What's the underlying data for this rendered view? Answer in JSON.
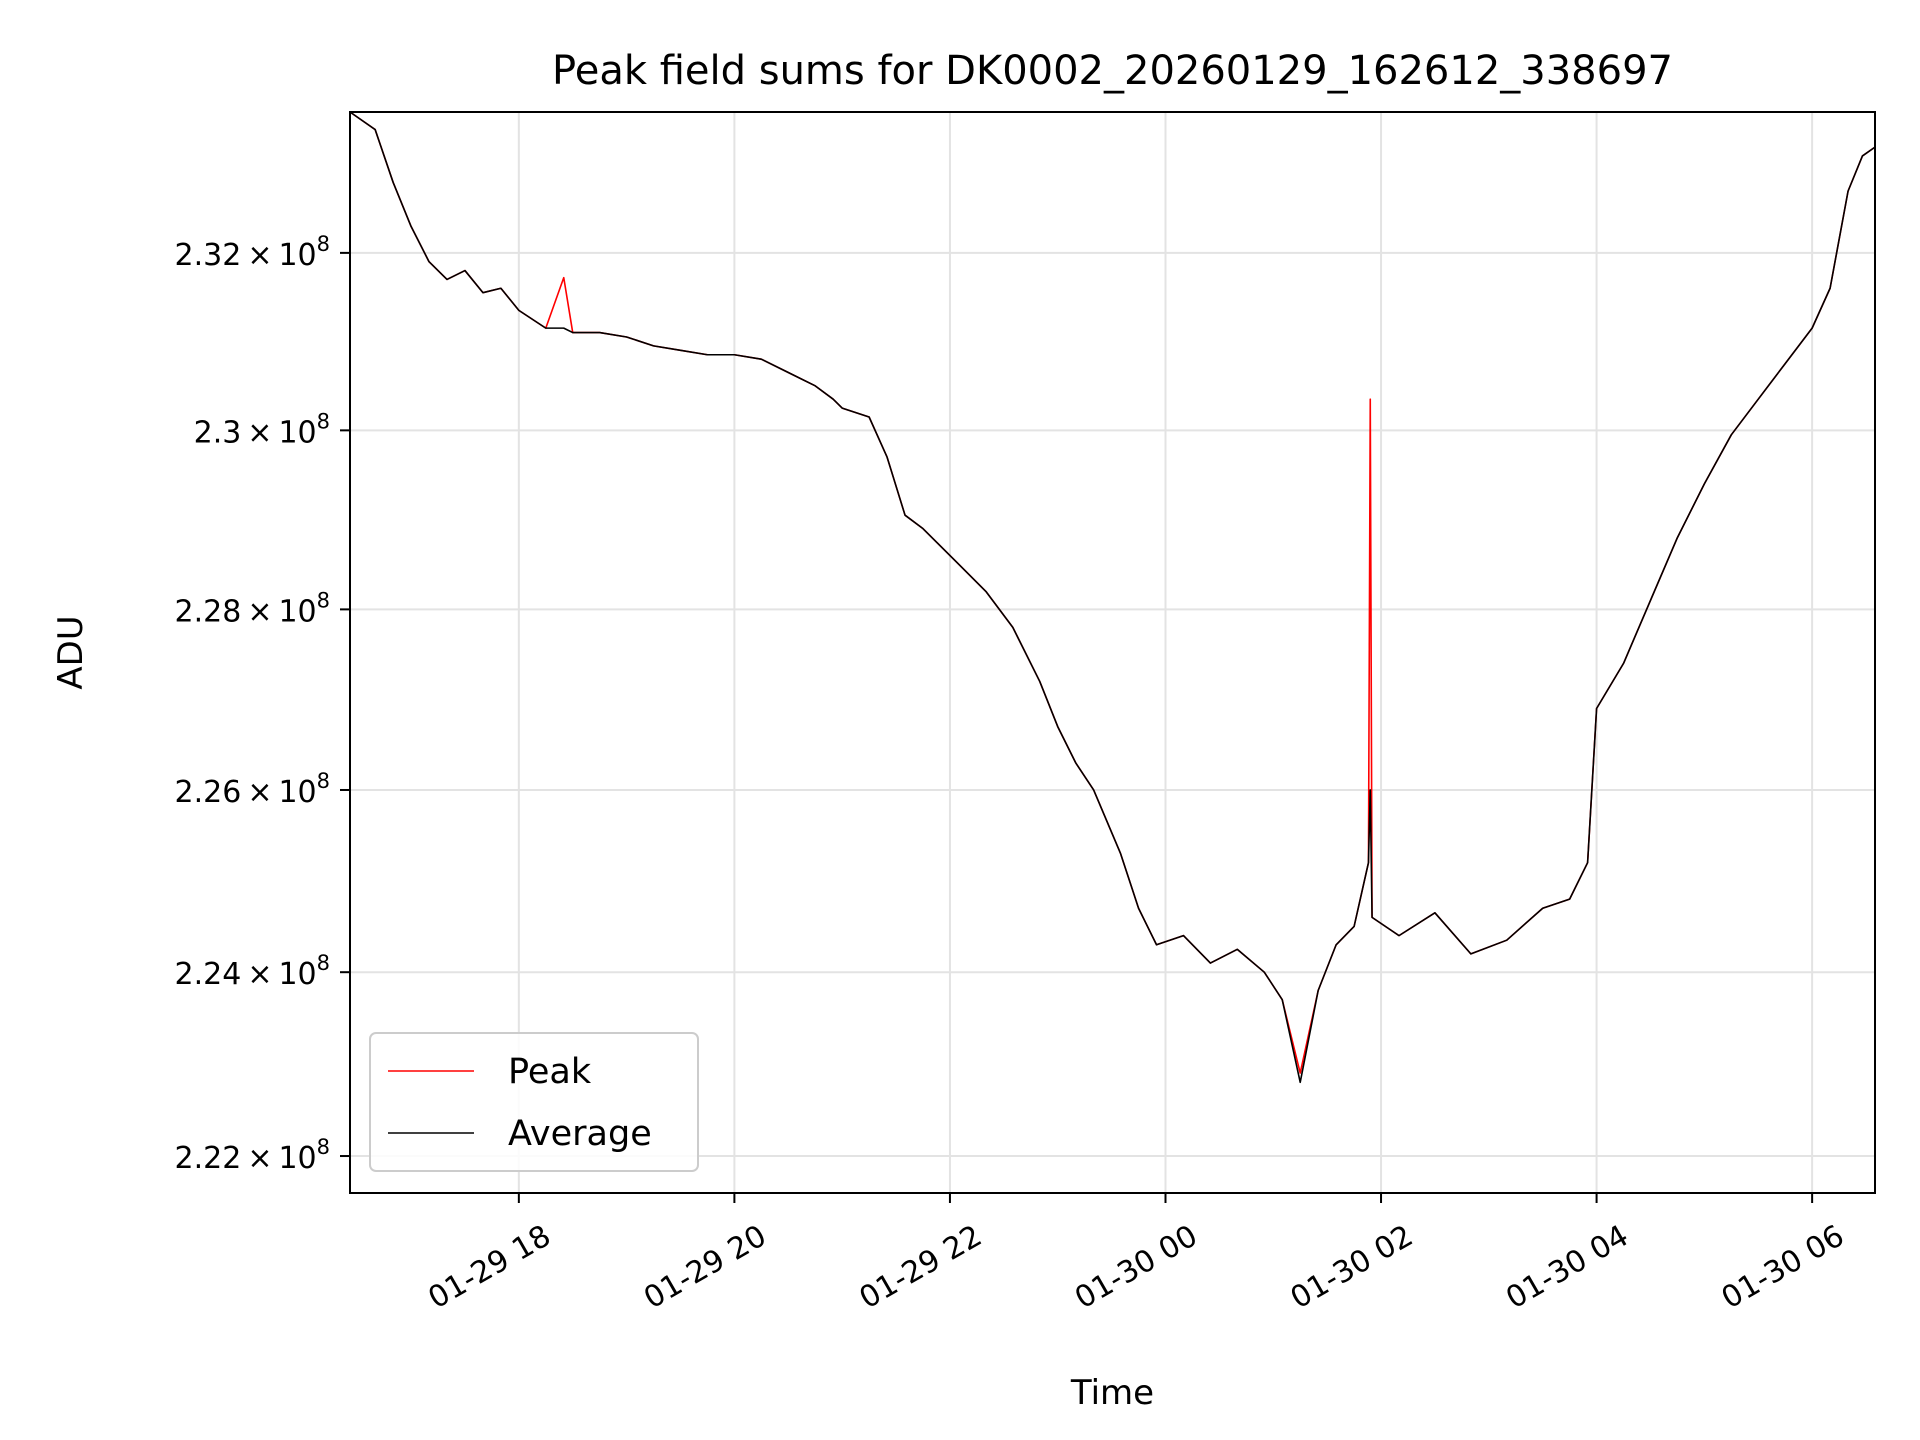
{
  "chart_data": {
    "type": "line",
    "title": "Peak field sums for DK0002_20260129_162612_338697",
    "xlabel": "Time",
    "ylabel": "ADU",
    "x_axis": {
      "kind": "datetime",
      "range": [
        "2026-01-29 16:26",
        "2026-01-30 06:35"
      ],
      "tick_values": [
        "2026-01-29 18:00",
        "2026-01-29 20:00",
        "2026-01-29 22:00",
        "2026-01-30 00:00",
        "2026-01-30 02:00",
        "2026-01-30 04:00",
        "2026-01-30 06:00"
      ],
      "tick_labels": [
        "01-29 18",
        "01-29 20",
        "01-29 22",
        "01-30 00",
        "01-30 02",
        "01-30 04",
        "01-30 06"
      ]
    },
    "y_axis": {
      "scale": "log",
      "ylim": [
        221600000,
        233600000
      ],
      "tick_values": [
        222000000,
        224000000,
        226000000,
        228000000,
        230000000,
        232000000
      ],
      "tick_mantissas": [
        "2.22",
        "2.24",
        "2.26",
        "2.28",
        "2.3",
        "2.32"
      ],
      "tick_exponent": "8"
    },
    "grid": true,
    "legend": {
      "placement": "lower-left",
      "entries": [
        "Peak",
        "Average"
      ]
    },
    "series": [
      {
        "name": "Peak",
        "color": "#ff0000",
        "points": [
          [
            "2026-01-29 16:26",
            233600000
          ],
          [
            "2026-01-29 16:40",
            233400000
          ],
          [
            "2026-01-29 16:50",
            232800000
          ],
          [
            "2026-01-29 17:00",
            232300000
          ],
          [
            "2026-01-29 17:10",
            231900000
          ],
          [
            "2026-01-29 17:20",
            231700000
          ],
          [
            "2026-01-29 17:30",
            231800000
          ],
          [
            "2026-01-29 17:40",
            231550000
          ],
          [
            "2026-01-29 17:50",
            231600000
          ],
          [
            "2026-01-29 18:00",
            231350000
          ],
          [
            "2026-01-29 18:15",
            231150000
          ],
          [
            "2026-01-29 18:25",
            231720000
          ],
          [
            "2026-01-29 18:30",
            231100000
          ],
          [
            "2026-01-29 18:45",
            231100000
          ],
          [
            "2026-01-29 19:00",
            231050000
          ],
          [
            "2026-01-29 19:15",
            230950000
          ],
          [
            "2026-01-29 19:30",
            230900000
          ],
          [
            "2026-01-29 19:45",
            230850000
          ],
          [
            "2026-01-29 20:00",
            230850000
          ],
          [
            "2026-01-29 20:15",
            230800000
          ],
          [
            "2026-01-29 20:30",
            230650000
          ],
          [
            "2026-01-29 20:45",
            230500000
          ],
          [
            "2026-01-29 20:55",
            230350000
          ],
          [
            "2026-01-29 21:00",
            230250000
          ],
          [
            "2026-01-29 21:15",
            230150000
          ],
          [
            "2026-01-29 21:25",
            229700000
          ],
          [
            "2026-01-29 21:35",
            229050000
          ],
          [
            "2026-01-29 21:45",
            228900000
          ],
          [
            "2026-01-29 21:55",
            228700000
          ],
          [
            "2026-01-29 22:05",
            228500000
          ],
          [
            "2026-01-29 22:20",
            228200000
          ],
          [
            "2026-01-29 22:35",
            227800000
          ],
          [
            "2026-01-29 22:50",
            227200000
          ],
          [
            "2026-01-29 23:00",
            226700000
          ],
          [
            "2026-01-29 23:10",
            226300000
          ],
          [
            "2026-01-29 23:20",
            226000000
          ],
          [
            "2026-01-29 23:35",
            225300000
          ],
          [
            "2026-01-29 23:45",
            224700000
          ],
          [
            "2026-01-29 23:55",
            224300000
          ],
          [
            "2026-01-30 00:10",
            224400000
          ],
          [
            "2026-01-30 00:25",
            224100000
          ],
          [
            "2026-01-30 00:40",
            224250000
          ],
          [
            "2026-01-30 00:55",
            224000000
          ],
          [
            "2026-01-30 01:05",
            223700000
          ],
          [
            "2026-01-30 01:15",
            222900000
          ],
          [
            "2026-01-30 01:25",
            223800000
          ],
          [
            "2026-01-30 01:35",
            224300000
          ],
          [
            "2026-01-30 01:45",
            224500000
          ],
          [
            "2026-01-30 01:53",
            225200000
          ],
          [
            "2026-01-30 01:54",
            230350000
          ],
          [
            "2026-01-30 01:55",
            224600000
          ],
          [
            "2026-01-30 02:10",
            224400000
          ],
          [
            "2026-01-30 02:30",
            224650000
          ],
          [
            "2026-01-30 02:50",
            224200000
          ],
          [
            "2026-01-30 03:10",
            224350000
          ],
          [
            "2026-01-30 03:30",
            224700000
          ],
          [
            "2026-01-30 03:45",
            224800000
          ],
          [
            "2026-01-30 03:55",
            225200000
          ],
          [
            "2026-01-30 04:00",
            226900000
          ],
          [
            "2026-01-30 04:15",
            227400000
          ],
          [
            "2026-01-30 04:30",
            228100000
          ],
          [
            "2026-01-30 04:45",
            228800000
          ],
          [
            "2026-01-30 05:00",
            229400000
          ],
          [
            "2026-01-30 05:15",
            229950000
          ],
          [
            "2026-01-30 05:30",
            230350000
          ],
          [
            "2026-01-30 05:45",
            230750000
          ],
          [
            "2026-01-30 06:00",
            231150000
          ],
          [
            "2026-01-30 06:10",
            231600000
          ],
          [
            "2026-01-30 06:20",
            232700000
          ],
          [
            "2026-01-30 06:28",
            233100000
          ],
          [
            "2026-01-30 06:35",
            233200000
          ]
        ]
      },
      {
        "name": "Average",
        "color": "#000000",
        "points": [
          [
            "2026-01-29 16:26",
            233600000
          ],
          [
            "2026-01-29 16:40",
            233400000
          ],
          [
            "2026-01-29 16:50",
            232800000
          ],
          [
            "2026-01-29 17:00",
            232300000
          ],
          [
            "2026-01-29 17:10",
            231900000
          ],
          [
            "2026-01-29 17:20",
            231700000
          ],
          [
            "2026-01-29 17:30",
            231800000
          ],
          [
            "2026-01-29 17:40",
            231550000
          ],
          [
            "2026-01-29 17:50",
            231600000
          ],
          [
            "2026-01-29 18:00",
            231350000
          ],
          [
            "2026-01-29 18:15",
            231150000
          ],
          [
            "2026-01-29 18:25",
            231150000
          ],
          [
            "2026-01-29 18:30",
            231100000
          ],
          [
            "2026-01-29 18:45",
            231100000
          ],
          [
            "2026-01-29 19:00",
            231050000
          ],
          [
            "2026-01-29 19:15",
            230950000
          ],
          [
            "2026-01-29 19:30",
            230900000
          ],
          [
            "2026-01-29 19:45",
            230850000
          ],
          [
            "2026-01-29 20:00",
            230850000
          ],
          [
            "2026-01-29 20:15",
            230800000
          ],
          [
            "2026-01-29 20:30",
            230650000
          ],
          [
            "2026-01-29 20:45",
            230500000
          ],
          [
            "2026-01-29 20:55",
            230350000
          ],
          [
            "2026-01-29 21:00",
            230250000
          ],
          [
            "2026-01-29 21:15",
            230150000
          ],
          [
            "2026-01-29 21:25",
            229700000
          ],
          [
            "2026-01-29 21:35",
            229050000
          ],
          [
            "2026-01-29 21:45",
            228900000
          ],
          [
            "2026-01-29 21:55",
            228700000
          ],
          [
            "2026-01-29 22:05",
            228500000
          ],
          [
            "2026-01-29 22:20",
            228200000
          ],
          [
            "2026-01-29 22:35",
            227800000
          ],
          [
            "2026-01-29 22:50",
            227200000
          ],
          [
            "2026-01-29 23:00",
            226700000
          ],
          [
            "2026-01-29 23:10",
            226300000
          ],
          [
            "2026-01-29 23:20",
            226000000
          ],
          [
            "2026-01-29 23:35",
            225300000
          ],
          [
            "2026-01-29 23:45",
            224700000
          ],
          [
            "2026-01-29 23:55",
            224300000
          ],
          [
            "2026-01-30 00:10",
            224400000
          ],
          [
            "2026-01-30 00:25",
            224100000
          ],
          [
            "2026-01-30 00:40",
            224250000
          ],
          [
            "2026-01-30 00:55",
            224000000
          ],
          [
            "2026-01-30 01:05",
            223700000
          ],
          [
            "2026-01-30 01:15",
            222800000
          ],
          [
            "2026-01-30 01:25",
            223800000
          ],
          [
            "2026-01-30 01:35",
            224300000
          ],
          [
            "2026-01-30 01:45",
            224500000
          ],
          [
            "2026-01-30 01:53",
            225200000
          ],
          [
            "2026-01-30 01:54",
            226000000
          ],
          [
            "2026-01-30 01:55",
            224600000
          ],
          [
            "2026-01-30 02:10",
            224400000
          ],
          [
            "2026-01-30 02:30",
            224650000
          ],
          [
            "2026-01-30 02:50",
            224200000
          ],
          [
            "2026-01-30 03:10",
            224350000
          ],
          [
            "2026-01-30 03:30",
            224700000
          ],
          [
            "2026-01-30 03:45",
            224800000
          ],
          [
            "2026-01-30 03:55",
            225200000
          ],
          [
            "2026-01-30 04:00",
            226900000
          ],
          [
            "2026-01-30 04:15",
            227400000
          ],
          [
            "2026-01-30 04:30",
            228100000
          ],
          [
            "2026-01-30 04:45",
            228800000
          ],
          [
            "2026-01-30 05:00",
            229400000
          ],
          [
            "2026-01-30 05:15",
            229950000
          ],
          [
            "2026-01-30 05:30",
            230350000
          ],
          [
            "2026-01-30 05:45",
            230750000
          ],
          [
            "2026-01-30 06:00",
            231150000
          ],
          [
            "2026-01-30 06:10",
            231600000
          ],
          [
            "2026-01-30 06:20",
            232700000
          ],
          [
            "2026-01-30 06:28",
            233100000
          ],
          [
            "2026-01-30 06:35",
            233200000
          ]
        ]
      }
    ]
  }
}
